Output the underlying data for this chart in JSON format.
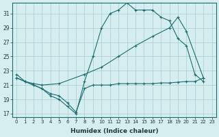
{
  "background_color": "#d6eef0",
  "grid_color": "#a8cdd0",
  "line_color": "#1a6b6e",
  "xlabel": "Humidex (Indice chaleur)",
  "xlim": [
    -0.5,
    23.5
  ],
  "ylim": [
    16.5,
    32.5
  ],
  "xticks": [
    0,
    1,
    2,
    3,
    4,
    5,
    6,
    7,
    8,
    9,
    10,
    11,
    12,
    13,
    14,
    15,
    16,
    17,
    18,
    19,
    20,
    21,
    22,
    23
  ],
  "yticks": [
    17,
    19,
    21,
    23,
    25,
    27,
    29,
    31
  ],
  "line1_x": [
    0,
    1,
    2,
    3,
    4,
    5,
    6,
    7,
    8,
    9,
    10,
    11,
    12,
    13,
    14,
    15,
    16,
    17,
    18,
    19,
    20,
    21,
    22
  ],
  "line1_y": [
    22.5,
    21.5,
    21.0,
    20.5,
    19.5,
    19.0,
    18.0,
    17.0,
    21.5,
    25.0,
    29.0,
    31.0,
    31.5,
    32.5,
    31.5,
    31.5,
    31.5,
    30.5,
    30.0,
    27.5,
    26.5,
    22.5,
    21.5
  ],
  "line2_x": [
    0,
    1,
    2,
    3,
    5,
    8,
    10,
    12,
    14,
    16,
    18,
    19,
    20,
    22
  ],
  "line2_y": [
    22.0,
    21.5,
    21.2,
    21.0,
    21.2,
    22.5,
    23.5,
    25.0,
    26.5,
    27.8,
    29.0,
    30.5,
    28.5,
    22.0
  ],
  "line3_x": [
    0,
    1,
    2,
    3,
    4,
    5,
    6,
    7,
    8,
    9,
    10,
    11,
    12,
    13,
    14,
    15,
    16,
    17,
    18,
    19,
    20,
    21,
    22
  ],
  "line3_y": [
    22.0,
    21.5,
    21.0,
    20.5,
    19.8,
    19.5,
    18.5,
    17.2,
    20.5,
    21.0,
    21.0,
    21.0,
    21.2,
    21.2,
    21.2,
    21.2,
    21.2,
    21.3,
    21.3,
    21.4,
    21.5,
    21.5,
    22.0
  ],
  "figsize": [
    3.2,
    2.0
  ],
  "dpi": 100
}
